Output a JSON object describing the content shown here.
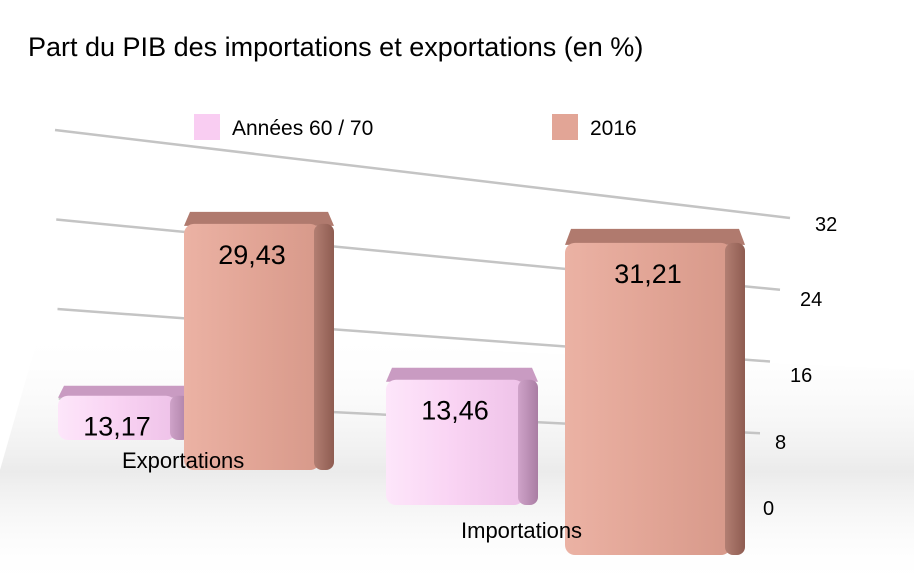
{
  "chart_data": {
    "type": "bar",
    "title": "Part du PIB des importations et exportations (en %)",
    "categories": [
      "Exportations",
      "Importations"
    ],
    "series": [
      {
        "name": "Années 60 / 70",
        "values": [
          13.17,
          13.46
        ],
        "labels": [
          "13,17",
          "13,46"
        ],
        "color": "#f9cdf2"
      },
      {
        "name": "2016",
        "values": [
          29.43,
          31.21
        ],
        "labels": [
          "29,43",
          "31,21"
        ],
        "color": "#e2a596"
      }
    ],
    "y_ticks": [
      0,
      8,
      16,
      24,
      32
    ],
    "ylim": [
      0,
      32
    ],
    "y_axis_side": "right",
    "grid": true,
    "legend_position": "top",
    "style": "3d-perspective"
  }
}
